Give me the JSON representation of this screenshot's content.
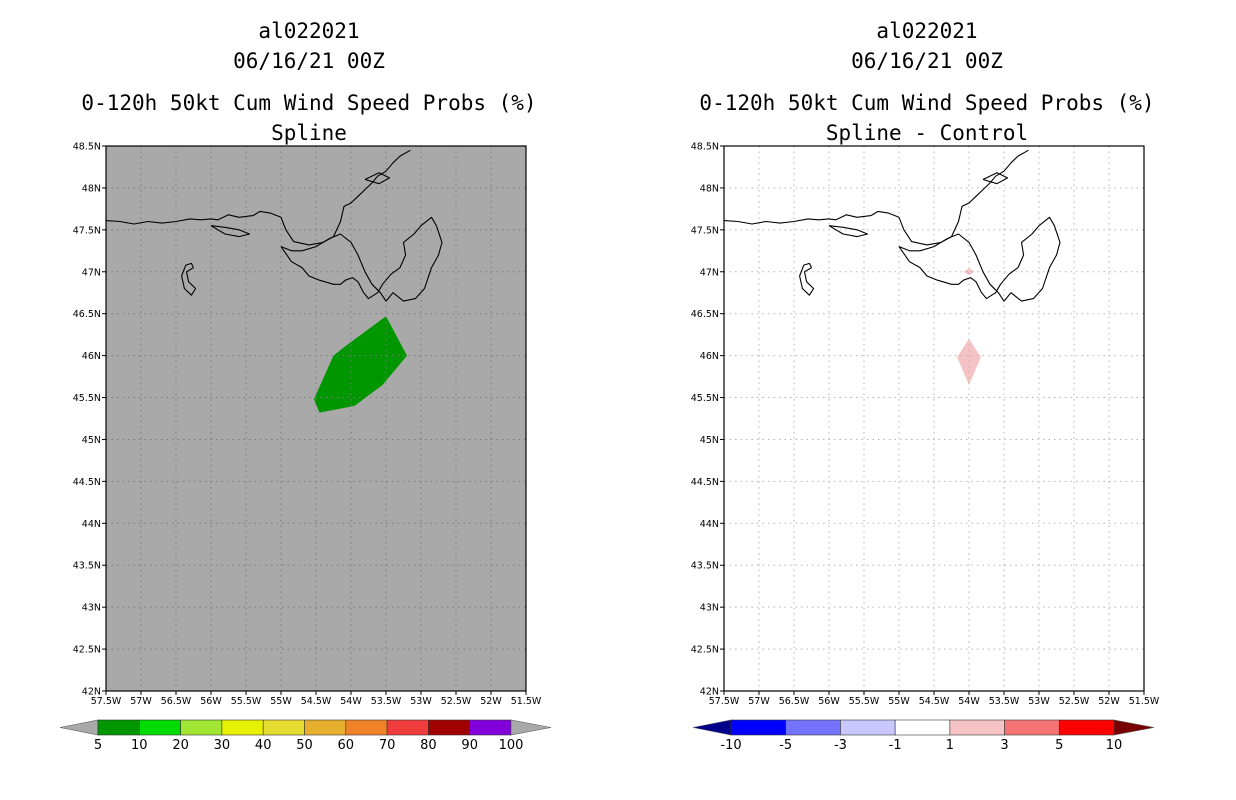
{
  "panels": [
    {
      "title_storm": "al022021",
      "title_time": "06/16/21 00Z",
      "title_product": "0-120h 50kt Cum Wind Speed Probs (%)",
      "title_run": "Spline"
    },
    {
      "title_storm": "al022021",
      "title_time": "06/16/21 00Z",
      "title_product": "0-120h 50kt Cum Wind Speed Probs (%)",
      "title_run": "Spline - Control"
    }
  ],
  "chart_data": [
    {
      "type": "heatmap",
      "title": "0-120h 50kt Cum Wind Speed Probs (%)",
      "subtitle": "Spline",
      "xlim": [
        -57.5,
        -51.5
      ],
      "ylim": [
        42,
        48.5
      ],
      "x_tick_labels": [
        "57.5W",
        "57W",
        "56.5W",
        "56W",
        "55.5W",
        "55W",
        "54.5W",
        "54W",
        "53.5W",
        "53W",
        "52.5W",
        "52W",
        "51.5W"
      ],
      "y_tick_labels": [
        "42N",
        "42.5N",
        "43N",
        "43.5N",
        "44N",
        "44.5N",
        "45N",
        "45.5N",
        "46N",
        "46.5N",
        "47N",
        "47.5N",
        "48N",
        "48.5N"
      ],
      "background": "#a9a9a9",
      "grid": true,
      "regions": [
        {
          "level": "5-10",
          "color": "#009600",
          "lonlat": [
            [
              -54.53,
              45.48
            ],
            [
              -54.25,
              46.0
            ],
            [
              -54.1,
              46.1
            ],
            [
              -53.5,
              46.47
            ],
            [
              -53.2,
              46.0
            ],
            [
              -53.55,
              45.65
            ],
            [
              -53.95,
              45.4
            ],
            [
              -54.45,
              45.32
            ]
          ]
        }
      ],
      "colorbar": {
        "labels": [
          "5",
          "10",
          "20",
          "30",
          "40",
          "50",
          "60",
          "70",
          "80",
          "90",
          "100"
        ],
        "colors": [
          "#009600",
          "#00dc00",
          "#a0e632",
          "#e6f000",
          "#e6dc32",
          "#e6af2d",
          "#f08228",
          "#f03c3c",
          "#a00000",
          "#8200dc"
        ],
        "under_color": "#a9a9a9",
        "over_color": "#a9a9a9"
      }
    },
    {
      "type": "heatmap",
      "title": "0-120h 50kt Cum Wind Speed Probs (%)",
      "subtitle": "Spline - Control",
      "xlim": [
        -57.5,
        -51.5
      ],
      "ylim": [
        42,
        48.5
      ],
      "x_tick_labels": [
        "57.5W",
        "57W",
        "56.5W",
        "56W",
        "55.5W",
        "55W",
        "54.5W",
        "54W",
        "53.5W",
        "53W",
        "52.5W",
        "52W",
        "51.5W"
      ],
      "y_tick_labels": [
        "42N",
        "42.5N",
        "43N",
        "43.5N",
        "44N",
        "44.5N",
        "45N",
        "45.5N",
        "46N",
        "46.5N",
        "47N",
        "47.5N",
        "48N",
        "48.5N"
      ],
      "background": "#ffffff",
      "grid": true,
      "regions": [
        {
          "level": "1-3",
          "color": "#f5c3c3",
          "lonlat": [
            [
              -54.0,
              46.2
            ],
            [
              -53.83,
              45.98
            ],
            [
              -54.0,
              45.65
            ],
            [
              -54.17,
              45.98
            ]
          ]
        },
        {
          "level": "1-3",
          "color": "#f5c3c3",
          "lonlat": [
            [
              -54.0,
              47.04
            ],
            [
              -53.92,
              47.0
            ],
            [
              -54.0,
              46.96
            ],
            [
              -54.08,
              47.0
            ]
          ]
        }
      ],
      "colorbar": {
        "labels": [
          "-10",
          "-5",
          "-3",
          "-1",
          "1",
          "3",
          "5",
          "10"
        ],
        "colors": [
          "#0000ff",
          "#7373ff",
          "#c8c8ff",
          "#ffffff",
          "#f5c3c3",
          "#f57373",
          "#ff0000"
        ],
        "under_color": "#00008c",
        "over_color": "#780000"
      }
    }
  ]
}
